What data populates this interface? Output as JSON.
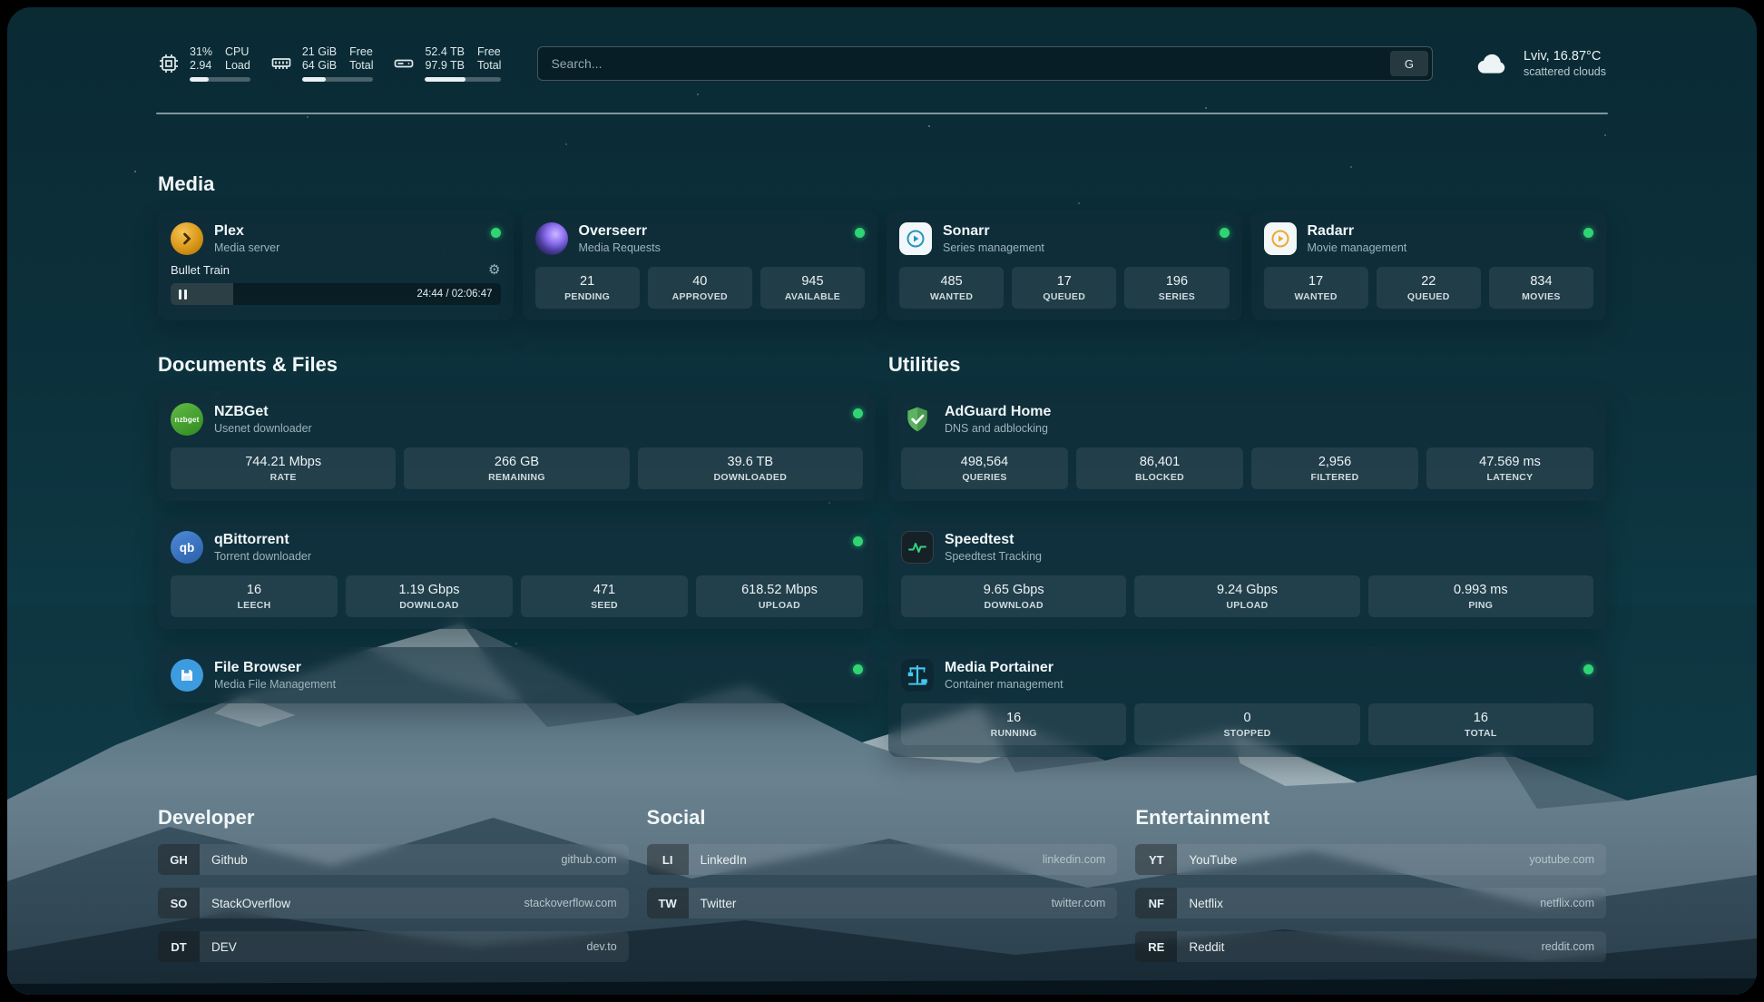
{
  "icons": {
    "gear": "⚙"
  },
  "topbar": {
    "cpu": {
      "value_top": "31%",
      "value_bottom": "2.94",
      "label_top": "CPU",
      "label_bottom": "Load",
      "bar_percent": 31
    },
    "memory": {
      "value_top": "21 GiB",
      "value_bottom": "64 GiB",
      "label_top": "Free",
      "label_bottom": "Total",
      "bar_percent": 33
    },
    "disk": {
      "value_top": "52.4 TB",
      "value_bottom": "97.9 TB",
      "label_top": "Free",
      "label_bottom": "Total",
      "bar_percent": 53
    },
    "search": {
      "placeholder": "Search...",
      "button_label": "G"
    },
    "weather": {
      "location": "Lviv, 16.87°C",
      "condition": "scattered clouds"
    }
  },
  "sections": {
    "media": {
      "title": "Media"
    },
    "documents": {
      "title": "Documents & Files"
    },
    "utilities": {
      "title": "Utilities"
    }
  },
  "services": {
    "plex": {
      "name": "Plex",
      "subtitle": "Media server",
      "now_playing": "Bullet Train",
      "elapsed": "24:44 / 02:06:47",
      "progress_percent": 19
    },
    "overseerr": {
      "name": "Overseerr",
      "subtitle": "Media Requests",
      "stats": [
        {
          "value": "21",
          "label": "PENDING"
        },
        {
          "value": "40",
          "label": "APPROVED"
        },
        {
          "value": "945",
          "label": "AVAILABLE"
        }
      ]
    },
    "sonarr": {
      "name": "Sonarr",
      "subtitle": "Series management",
      "stats": [
        {
          "value": "485",
          "label": "WANTED"
        },
        {
          "value": "17",
          "label": "QUEUED"
        },
        {
          "value": "196",
          "label": "SERIES"
        }
      ]
    },
    "radarr": {
      "name": "Radarr",
      "subtitle": "Movie management",
      "stats": [
        {
          "value": "17",
          "label": "WANTED"
        },
        {
          "value": "22",
          "label": "QUEUED"
        },
        {
          "value": "834",
          "label": "MOVIES"
        }
      ]
    },
    "nzbget": {
      "name": "NZBGet",
      "subtitle": "Usenet downloader",
      "icon_text": "nzbget",
      "stats": [
        {
          "value": "744.21 Mbps",
          "label": "RATE"
        },
        {
          "value": "266 GB",
          "label": "REMAINING"
        },
        {
          "value": "39.6 TB",
          "label": "DOWNLOADED"
        }
      ]
    },
    "qbittorrent": {
      "name": "qBittorrent",
      "subtitle": "Torrent downloader",
      "icon_text": "qb",
      "stats": [
        {
          "value": "16",
          "label": "LEECH"
        },
        {
          "value": "1.19 Gbps",
          "label": "DOWNLOAD"
        },
        {
          "value": "471",
          "label": "SEED"
        },
        {
          "value": "618.52 Mbps",
          "label": "UPLOAD"
        }
      ]
    },
    "filebrowser": {
      "name": "File Browser",
      "subtitle": "Media File Management"
    },
    "adguard": {
      "name": "AdGuard Home",
      "subtitle": "DNS and adblocking",
      "stats": [
        {
          "value": "498,564",
          "label": "QUERIES"
        },
        {
          "value": "86,401",
          "label": "BLOCKED"
        },
        {
          "value": "2,956",
          "label": "FILTERED"
        },
        {
          "value": "47.569 ms",
          "label": "LATENCY"
        }
      ]
    },
    "speedtest": {
      "name": "Speedtest",
      "subtitle": "Speedtest Tracking",
      "stats": [
        {
          "value": "9.65 Gbps",
          "label": "DOWNLOAD"
        },
        {
          "value": "9.24 Gbps",
          "label": "UPLOAD"
        },
        {
          "value": "0.993 ms",
          "label": "PING"
        }
      ]
    },
    "portainer": {
      "name": "Media Portainer",
      "subtitle": "Container management",
      "stats": [
        {
          "value": "16",
          "label": "RUNNING"
        },
        {
          "value": "0",
          "label": "STOPPED"
        },
        {
          "value": "16",
          "label": "TOTAL"
        }
      ]
    }
  },
  "bookmarks": [
    {
      "title": "Developer",
      "items": [
        {
          "abbr": "GH",
          "name": "Github",
          "url": "github.com"
        },
        {
          "abbr": "SO",
          "name": "StackOverflow",
          "url": "stackoverflow.com"
        },
        {
          "abbr": "DT",
          "name": "DEV",
          "url": "dev.to"
        }
      ]
    },
    {
      "title": "Social",
      "items": [
        {
          "abbr": "LI",
          "name": "LinkedIn",
          "url": "linkedin.com"
        },
        {
          "abbr": "TW",
          "name": "Twitter",
          "url": "twitter.com"
        }
      ]
    },
    {
      "title": "Entertainment",
      "items": [
        {
          "abbr": "YT",
          "name": "YouTube",
          "url": "youtube.com"
        },
        {
          "abbr": "NF",
          "name": "Netflix",
          "url": "netflix.com"
        },
        {
          "abbr": "RE",
          "name": "Reddit",
          "url": "reddit.com"
        }
      ]
    }
  ]
}
